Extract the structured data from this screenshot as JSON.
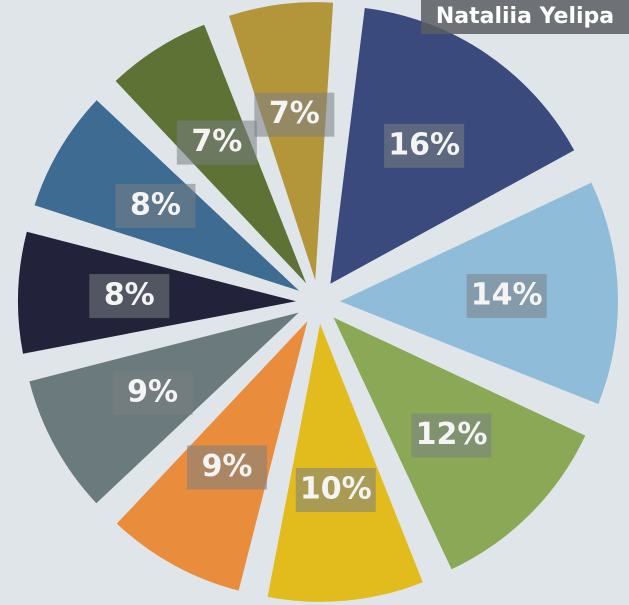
{
  "chart_data": {
    "type": "pie",
    "annotation": "Nataliia Yelipa",
    "values": [
      16,
      14,
      12,
      10,
      9,
      9,
      8,
      8,
      7,
      7
    ],
    "value_labels": [
      "16%",
      "14%",
      "12%",
      "10%",
      "9%",
      "9%",
      "8%",
      "8%",
      "7%",
      "7%"
    ],
    "colors": [
      "#3b4a7c",
      "#8fbcd9",
      "#8ba856",
      "#e2bb1c",
      "#e98c3c",
      "#6b7a7c",
      "#22233a",
      "#3d6b91",
      "#5d7234",
      "#b3963a"
    ]
  }
}
